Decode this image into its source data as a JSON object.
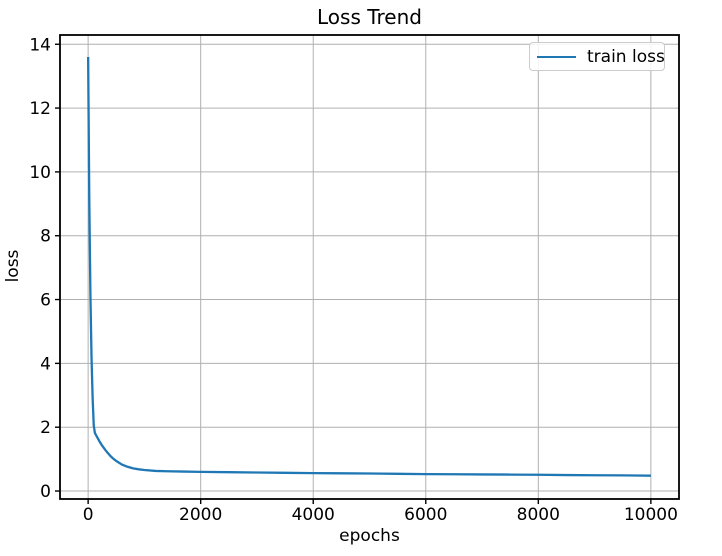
{
  "window": {
    "background": "#ffffff"
  },
  "chart_data": {
    "type": "line",
    "title": "Loss Trend",
    "xlabel": "epochs",
    "ylabel": "loss",
    "grid": true,
    "legend": {
      "position": "upper right",
      "entries": [
        {
          "label": "train loss",
          "color": "#1f77b4"
        }
      ]
    },
    "xlim": [
      -500,
      10500
    ],
    "ylim": [
      -0.25,
      14.29
    ],
    "xticks": [
      0,
      2000,
      4000,
      6000,
      8000,
      10000
    ],
    "yticks": [
      0,
      2,
      4,
      6,
      8,
      10,
      12,
      14
    ],
    "series": [
      {
        "name": "train loss",
        "color": "#1f77b4",
        "x": [
          0,
          20,
          40,
          60,
          80,
          100,
          120,
          150,
          200,
          250,
          300,
          350,
          400,
          450,
          500,
          600,
          700,
          800,
          900,
          1000,
          1200,
          1400,
          1700,
          2000,
          2500,
          3000,
          3500,
          4000,
          4500,
          5000,
          5500,
          6000,
          6500,
          7000,
          7500,
          8000,
          8500,
          9000,
          9500,
          10000
        ],
        "y": [
          13.6,
          9.2,
          6.2,
          4.2,
          2.9,
          2.05,
          1.82,
          1.72,
          1.56,
          1.42,
          1.3,
          1.19,
          1.09,
          1.01,
          0.94,
          0.83,
          0.76,
          0.71,
          0.68,
          0.66,
          0.63,
          0.62,
          0.61,
          0.6,
          0.59,
          0.58,
          0.57,
          0.56,
          0.555,
          0.55,
          0.54,
          0.53,
          0.525,
          0.52,
          0.515,
          0.51,
          0.5,
          0.495,
          0.49,
          0.48
        ]
      }
    ],
    "colors": {
      "grid": "#b0b0b0",
      "spine": "#000000",
      "tick": "#000000",
      "text": "#000000"
    }
  }
}
